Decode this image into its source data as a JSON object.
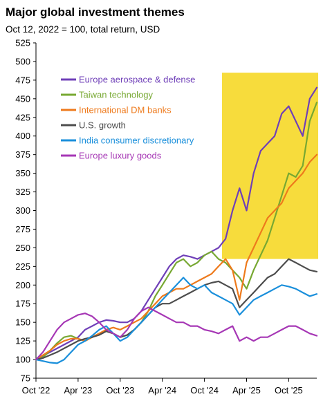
{
  "chart_data": {
    "type": "line",
    "title": "Major global investment themes",
    "subtitle": "Oct 12, 2022 = 100, total return, USD",
    "xlabel": "",
    "ylabel": "",
    "ylim": [
      75,
      525
    ],
    "y_ticks": [
      75,
      100,
      125,
      150,
      175,
      200,
      225,
      250,
      275,
      300,
      325,
      350,
      375,
      400,
      425,
      450,
      475,
      500,
      525
    ],
    "x_ticks": [
      "Oct '22",
      "Apr '23",
      "Oct '23",
      "Apr '24",
      "Oct '24",
      "Apr '25",
      "Oct '25"
    ],
    "x_tick_positions": [
      0,
      6,
      12,
      18,
      24,
      30,
      36
    ],
    "xlim": [
      0,
      40
    ],
    "grid": false,
    "legend_position": "top-left",
    "highlight_color": "#f7dc3c",
    "x": [
      0,
      1,
      2,
      3,
      4,
      5,
      6,
      7,
      8,
      9,
      10,
      11,
      12,
      13,
      14,
      15,
      16,
      17,
      18,
      19,
      20,
      21,
      22,
      23,
      24,
      25,
      26,
      27,
      28,
      29,
      30,
      31,
      32,
      33,
      34,
      35,
      36,
      37,
      38,
      39,
      40
    ],
    "series": [
      {
        "name": "Europe aerospace & defense",
        "color": "#6f3fb8",
        "values": [
          100,
          105,
          110,
          115,
          120,
          125,
          130,
          140,
          145,
          150,
          153,
          152,
          150,
          150,
          155,
          165,
          180,
          195,
          210,
          225,
          235,
          240,
          238,
          235,
          240,
          245,
          250,
          262,
          300,
          330,
          300,
          350,
          380,
          390,
          400,
          430,
          440,
          420,
          400,
          450,
          465
        ]
      },
      {
        "name": "Taiwan technology",
        "color": "#77a832",
        "values": [
          100,
          103,
          112,
          122,
          130,
          132,
          128,
          125,
          130,
          135,
          138,
          135,
          130,
          133,
          140,
          150,
          165,
          185,
          200,
          215,
          230,
          235,
          225,
          230,
          240,
          245,
          235,
          230,
          220,
          210,
          195,
          220,
          240,
          260,
          290,
          320,
          350,
          345,
          360,
          420,
          445
        ]
      },
      {
        "name": "International DM banks",
        "color": "#ee7a1c",
        "values": [
          100,
          106,
          112,
          120,
          125,
          128,
          128,
          125,
          130,
          135,
          140,
          143,
          140,
          145,
          150,
          155,
          165,
          175,
          185,
          190,
          195,
          195,
          200,
          205,
          210,
          215,
          225,
          235,
          220,
          180,
          230,
          250,
          270,
          290,
          300,
          310,
          330,
          340,
          350,
          365,
          375
        ]
      },
      {
        "name": "U.S. growth",
        "color": "#4d4d4d",
        "values": [
          100,
          102,
          106,
          110,
          115,
          120,
          125,
          128,
          130,
          133,
          138,
          135,
          130,
          133,
          140,
          150,
          160,
          170,
          175,
          175,
          180,
          185,
          190,
          195,
          200,
          203,
          205,
          200,
          195,
          170,
          180,
          190,
          200,
          210,
          215,
          225,
          235,
          230,
          225,
          220,
          218
        ]
      },
      {
        "name": "India consumer discretionary",
        "color": "#1a8fdb",
        "values": [
          100,
          98,
          96,
          95,
          100,
          110,
          120,
          125,
          132,
          140,
          145,
          135,
          125,
          130,
          140,
          150,
          160,
          170,
          180,
          190,
          200,
          210,
          200,
          195,
          200,
          190,
          185,
          180,
          175,
          160,
          170,
          180,
          185,
          190,
          195,
          200,
          198,
          195,
          190,
          185,
          188
        ]
      },
      {
        "name": "Europe luxury goods",
        "color": "#a637b5",
        "values": [
          100,
          110,
          125,
          140,
          150,
          155,
          160,
          162,
          158,
          150,
          140,
          135,
          130,
          140,
          155,
          165,
          170,
          165,
          160,
          155,
          150,
          150,
          145,
          145,
          140,
          138,
          135,
          140,
          145,
          125,
          130,
          125,
          130,
          130,
          135,
          140,
          145,
          145,
          140,
          135,
          132
        ]
      }
    ]
  }
}
